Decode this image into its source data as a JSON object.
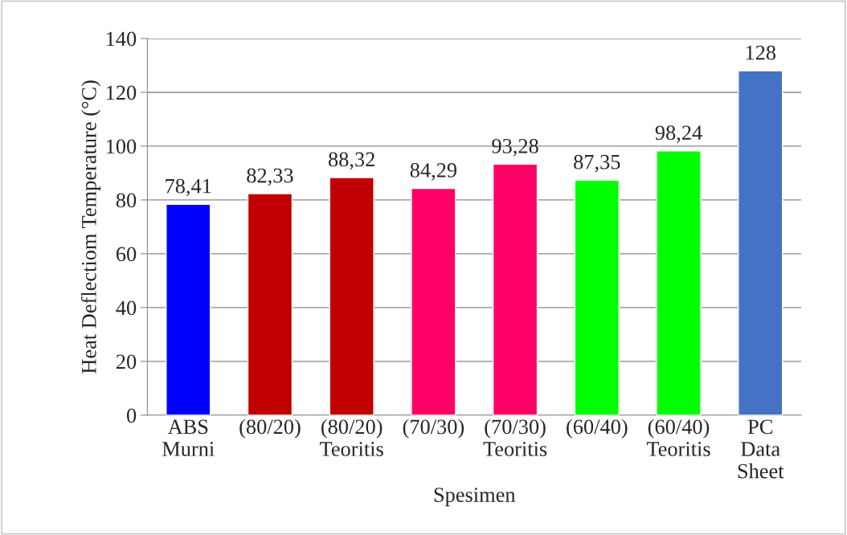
{
  "chart_data": {
    "type": "bar",
    "xlabel": "Spesimen",
    "ylabel": "Heat Deflectiom Temperature (°C)",
    "categories": [
      "ABS\nMurni",
      "(80/20)",
      "(80/20)\nTeoritis",
      "(70/30)",
      "(70/30)\nTeoritis",
      "(60/40)",
      "(60/40)\nTeoritis",
      "PC\nData\nSheet"
    ],
    "values": [
      78.41,
      82.33,
      88.32,
      84.29,
      93.28,
      87.35,
      98.24,
      128
    ],
    "value_labels": [
      "78,41",
      "82,33",
      "88,32",
      "84,29",
      "93,28",
      "87,35",
      "98,24",
      "128"
    ],
    "colors": [
      "#0000ff",
      "#c00000",
      "#c00000",
      "#ff0066",
      "#ff0066",
      "#00ff00",
      "#00ff00",
      "#4472c4"
    ],
    "ylim": [
      0,
      140
    ],
    "yticks": [
      0,
      20,
      40,
      60,
      80,
      100,
      120,
      140
    ],
    "grid": "y",
    "legend": false
  }
}
